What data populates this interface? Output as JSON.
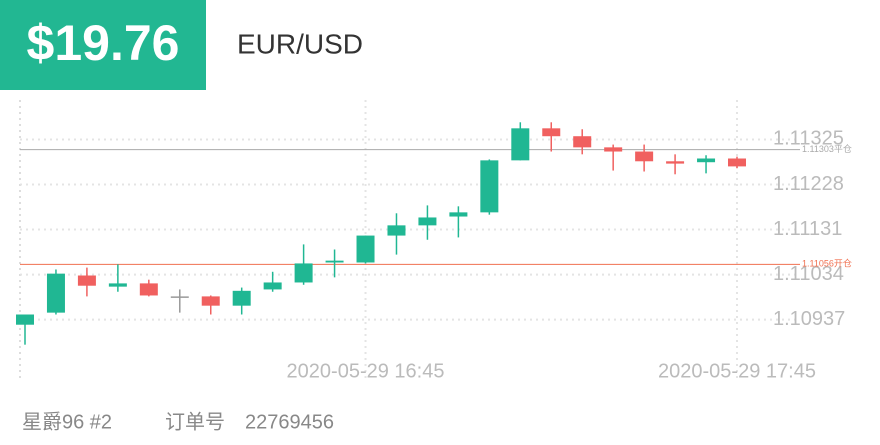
{
  "header": {
    "amount": "$19.76",
    "symbol": "EUR/USD"
  },
  "footer": {
    "account": "星爵96 #2",
    "order_label": "订单号",
    "order_number": "22769456"
  },
  "chart_data": {
    "type": "candlestick",
    "categories": [
      null,
      null,
      null,
      null,
      null,
      null,
      null,
      null,
      null,
      null,
      null,
      "2020-05-29 16:45",
      null,
      null,
      null,
      null,
      null,
      null,
      null,
      null,
      null,
      null,
      null,
      "2020-05-29 17:45"
    ],
    "open": [
      1.10926,
      1.10952,
      1.11032,
      1.11008,
      1.11015,
      1.10987,
      1.10987,
      1.10967,
      1.11002,
      1.11017,
      1.1106,
      1.1106,
      1.11118,
      1.1114,
      1.11159,
      1.11168,
      1.1128,
      1.11349,
      1.11332,
      1.11308,
      1.11299,
      1.11278,
      1.11276,
      1.11284
    ],
    "high": [
      1.10948,
      1.11045,
      1.11049,
      1.11056,
      1.11023,
      1.11002,
      1.10989,
      1.11006,
      1.1104,
      1.11099,
      1.11088,
      1.11118,
      1.11166,
      1.11183,
      1.11181,
      1.11282,
      1.11362,
      1.11362,
      1.11347,
      1.11314,
      1.11314,
      1.11293,
      1.11291,
      1.11288
    ],
    "low": [
      1.10883,
      1.10948,
      1.10987,
      1.10997,
      1.10987,
      1.10952,
      1.10948,
      1.10948,
      1.10997,
      1.11012,
      1.11028,
      1.11058,
      1.11077,
      1.11109,
      1.11114,
      1.11163,
      1.1128,
      1.11299,
      1.11293,
      1.11258,
      1.11256,
      1.1125,
      1.11252,
      1.11263
    ],
    "close": [
      1.10948,
      1.11036,
      1.1101,
      1.11015,
      1.10989,
      1.10987,
      1.10967,
      1.10999,
      1.11017,
      1.11058,
      1.11064,
      1.11118,
      1.1114,
      1.11157,
      1.11168,
      1.1128,
      1.11349,
      1.11332,
      1.11308,
      1.11299,
      1.11278,
      1.11273,
      1.11284,
      1.11267
    ],
    "up_color": "#20b793",
    "down_color": "#f0605f",
    "flat_color": "#999999",
    "ylim": [
      1.1085,
      1.1141
    ],
    "yticks": [
      1.10937,
      1.11034,
      1.11131,
      1.11228,
      1.11325
    ],
    "grid": true,
    "annotations": [
      {
        "value": 1.11303,
        "label": "1.11303平仓",
        "color": "#aaaaaa"
      },
      {
        "value": 1.11056,
        "label": "1.11056开仓",
        "color": "#f07050"
      }
    ]
  }
}
